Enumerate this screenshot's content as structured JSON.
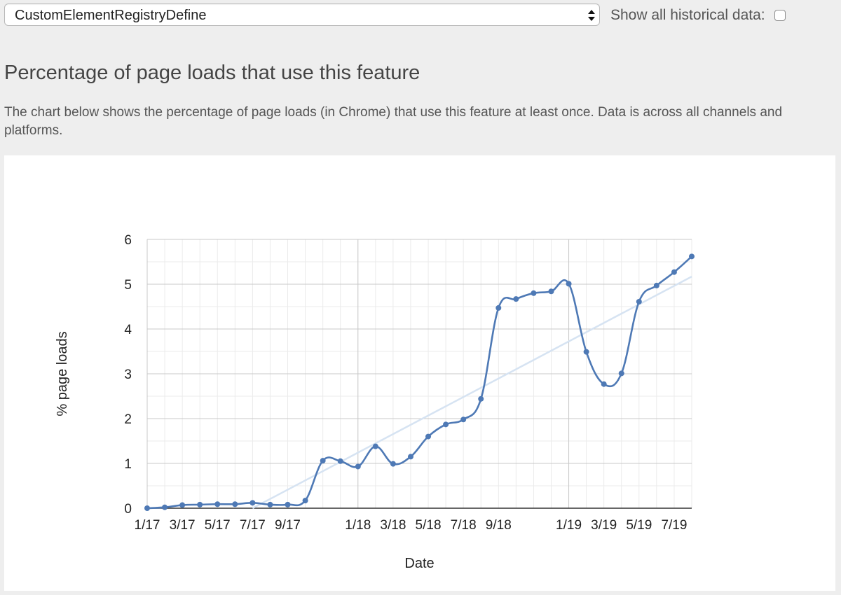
{
  "toolbar": {
    "feature_select_value": "CustomElementRegistryDefine",
    "historical_label": "Show all historical data:",
    "historical_checked": false
  },
  "section": {
    "title": "Percentage of page loads that use this feature",
    "description": "The chart below shows the percentage of page loads (in Chrome) that use this feature at least once. Data is across all channels and platforms."
  },
  "colors": {
    "line": "#4e79b5",
    "trend": "#d6e3f2",
    "grid_major": "#c8c8c8",
    "grid_minor": "#ebebeb",
    "axis": "#333333"
  },
  "chart_data": {
    "type": "line",
    "xlabel": "Date",
    "ylabel": "% page loads",
    "ylim": [
      0,
      6
    ],
    "yticks": [
      0,
      1,
      2,
      3,
      4,
      5,
      6
    ],
    "xlim": [
      "2017-01",
      "2019-08"
    ],
    "xtick_labels": [
      {
        "x": "2017-01",
        "label": "1/17"
      },
      {
        "x": "2017-03",
        "label": "3/17"
      },
      {
        "x": "2017-05",
        "label": "5/17"
      },
      {
        "x": "2017-07",
        "label": "7/17"
      },
      {
        "x": "2017-09",
        "label": "9/17"
      },
      {
        "x": "2018-01",
        "label": "1/18"
      },
      {
        "x": "2018-03",
        "label": "3/18"
      },
      {
        "x": "2018-05",
        "label": "5/18"
      },
      {
        "x": "2018-07",
        "label": "7/18"
      },
      {
        "x": "2018-09",
        "label": "9/18"
      },
      {
        "x": "2019-01",
        "label": "1/19"
      },
      {
        "x": "2019-03",
        "label": "3/19"
      },
      {
        "x": "2019-05",
        "label": "5/19"
      },
      {
        "x": "2019-07",
        "label": "7/19"
      }
    ],
    "major_gridlines_x": [
      "2018-01",
      "2019-01"
    ],
    "series": [
      {
        "points": [
          {
            "x": "2017-01",
            "y": 0.0
          },
          {
            "x": "2017-02",
            "y": 0.02
          },
          {
            "x": "2017-03",
            "y": 0.07
          },
          {
            "x": "2017-04",
            "y": 0.08
          },
          {
            "x": "2017-05",
            "y": 0.09
          },
          {
            "x": "2017-06",
            "y": 0.09
          },
          {
            "x": "2017-07",
            "y": 0.12
          },
          {
            "x": "2017-08",
            "y": 0.08
          },
          {
            "x": "2017-09",
            "y": 0.08
          },
          {
            "x": "2017-10",
            "y": 0.17
          },
          {
            "x": "2017-11",
            "y": 1.06
          },
          {
            "x": "2017-12",
            "y": 1.05
          },
          {
            "x": "2018-01",
            "y": 0.93
          },
          {
            "x": "2018-02",
            "y": 1.38
          },
          {
            "x": "2018-03",
            "y": 0.99
          },
          {
            "x": "2018-04",
            "y": 1.15
          },
          {
            "x": "2018-05",
            "y": 1.6
          },
          {
            "x": "2018-06",
            "y": 1.87
          },
          {
            "x": "2018-07",
            "y": 1.98
          },
          {
            "x": "2018-08",
            "y": 2.44
          },
          {
            "x": "2018-09",
            "y": 4.47
          },
          {
            "x": "2018-10",
            "y": 4.67
          },
          {
            "x": "2018-11",
            "y": 4.8
          },
          {
            "x": "2018-12",
            "y": 4.84
          },
          {
            "x": "2019-01",
            "y": 5.01
          },
          {
            "x": "2019-02",
            "y": 3.49
          },
          {
            "x": "2019-03",
            "y": 2.77
          },
          {
            "x": "2019-04",
            "y": 3.01
          },
          {
            "x": "2019-05",
            "y": 4.61
          },
          {
            "x": "2019-06",
            "y": 4.97
          },
          {
            "x": "2019-07",
            "y": 5.27
          },
          {
            "x": "2019-08",
            "y": 5.62
          }
        ]
      }
    ],
    "trendline": {
      "from": {
        "x": "2017-07",
        "y": 0.0
      },
      "to": {
        "x": "2019-08",
        "y": 5.17
      }
    },
    "grid": true,
    "legend": "none"
  }
}
